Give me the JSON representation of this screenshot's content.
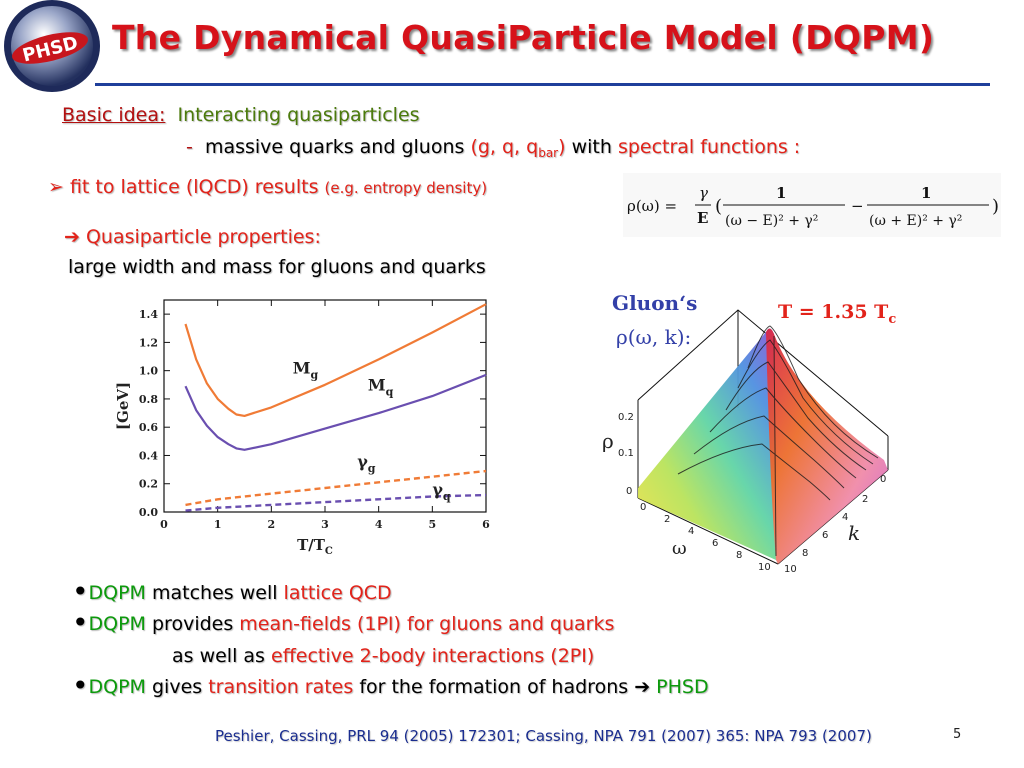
{
  "title": "The Dynamical QuasiParticle Model (DQPM)",
  "logo_text": "PHSD",
  "basic_idea": {
    "label": "Basic idea:",
    "text": "Interacting quasiparticles",
    "dash": "-",
    "line2_a": "massive quarks and gluons",
    "line2_b": "(g, q, q",
    "line2_sub": "bar",
    "line2_c": ")",
    "line2_d": "with",
    "line2_e": "spectral functions :"
  },
  "fit": {
    "arrow": "➢",
    "text": "fit to lattice (lQCD) results",
    "small": "(e.g. entropy density)"
  },
  "qp": {
    "arrow": "➔",
    "title": "Quasiparticle properties:",
    "line": "large width and mass for gluons and quarks"
  },
  "formula": {
    "lhs": "ρ(ω) =",
    "gamma": "γ",
    "E": "E",
    "lparen": "(",
    "num1": "1",
    "den1": "(ω − E)² + γ²",
    "minus": "−",
    "num2": "1",
    "den2": "(ω + E)² + γ²",
    "rparen": ")"
  },
  "bullets": [
    {
      "a": "DQPM",
      "b": " matches well ",
      "c": "lattice QCD"
    },
    {
      "a": "DQPM",
      "b": " provides ",
      "c": "mean-fields (1PI) for gluons and quarks"
    },
    {
      "b": "as well as ",
      "c": "effective 2-body interactions (2PI)"
    },
    {
      "a": "DQPM",
      "b": " gives ",
      "c": "transition rates",
      "d": " for the formation of hadrons ",
      "e": "➔",
      "f": " PHSD"
    }
  ],
  "bullet_symbol": "•",
  "footer": "Peshier, Cassing, PRL 94 (2005) 172301;    Cassing,  NPA 791 (2007) 365: NPA 793 (2007)",
  "page_number": "5",
  "chart_data": [
    {
      "type": "line",
      "xlabel": "T/T",
      "xlabel_sub": "C",
      "ylabel": "[GeV]",
      "xlim": [
        0,
        6
      ],
      "ylim": [
        0,
        1.5
      ],
      "xticks": [
        "0",
        "1",
        "2",
        "3",
        "4",
        "5",
        "6"
      ],
      "yticks": [
        "0.0",
        "0.2",
        "0.4",
        "0.6",
        "0.8",
        "1.0",
        "1.2",
        "1.4"
      ],
      "series": [
        {
          "name": "M",
          "name_sub": "g",
          "style": "solid",
          "color": "#f07b36",
          "x": [
            0.4,
            0.6,
            0.8,
            1.0,
            1.2,
            1.35,
            1.5,
            2,
            3,
            4,
            5,
            6
          ],
          "y": [
            1.33,
            1.08,
            0.91,
            0.8,
            0.73,
            0.69,
            0.68,
            0.74,
            0.9,
            1.08,
            1.27,
            1.47
          ]
        },
        {
          "name": "M",
          "name_sub": "q",
          "style": "solid",
          "color": "#6a4fb0",
          "x": [
            0.4,
            0.6,
            0.8,
            1.0,
            1.2,
            1.35,
            1.5,
            2,
            3,
            4,
            5,
            6
          ],
          "y": [
            0.89,
            0.72,
            0.61,
            0.53,
            0.48,
            0.45,
            0.44,
            0.48,
            0.59,
            0.7,
            0.82,
            0.97
          ]
        },
        {
          "name": "γ",
          "name_sub": "g",
          "style": "dashed",
          "color": "#f07b36",
          "x": [
            0.4,
            1,
            2,
            3,
            4,
            5,
            6
          ],
          "y": [
            0.05,
            0.09,
            0.13,
            0.17,
            0.21,
            0.25,
            0.29
          ]
        },
        {
          "name": "γ",
          "name_sub": "q",
          "style": "dashed",
          "color": "#6a4fb0",
          "x": [
            0.4,
            1,
            2,
            3,
            4,
            5,
            6
          ],
          "y": [
            0.01,
            0.03,
            0.05,
            0.07,
            0.09,
            0.11,
            0.12
          ]
        }
      ]
    },
    {
      "type": "surface",
      "title": "Gluon‘s",
      "subtitle": "ρ(ω, k):",
      "annotation": "T = 1.35 T",
      "annotation_sub": "c",
      "zlabel": "ρ",
      "xlabel": "ω",
      "ylabel": "k",
      "zticks": [
        "0",
        "0.1",
        "0.2"
      ],
      "omega_ticks": [
        "0",
        "2",
        "4",
        "6",
        "8",
        "10"
      ],
      "k_ticks": [
        "0",
        "2",
        "4",
        "6",
        "8",
        "10"
      ]
    }
  ],
  "colors": {
    "title_red": "#d6121a",
    "rule_blue": "#1f3f9b",
    "accent_red": "#e2231a",
    "accent_green": "#0c9a0c",
    "footer_blue": "#1a2d8f"
  }
}
